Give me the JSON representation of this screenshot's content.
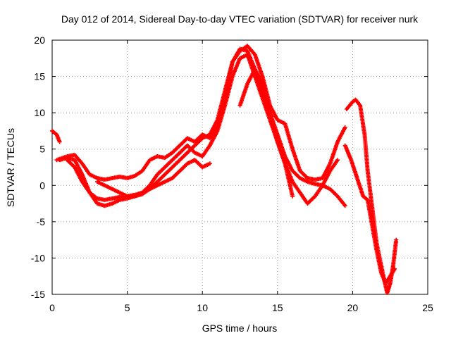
{
  "chart_data": {
    "type": "scatter",
    "title": "Day 012 of 2014, Sidereal Day-to-day VTEC variation (SDTVAR) for receiver nurk",
    "xlabel": "GPS time / hours",
    "ylabel": "SDTVAR / TECUs",
    "xlim": [
      0,
      25
    ],
    "ylim": [
      -15,
      20
    ],
    "xticks": [
      "0",
      "5",
      "10",
      "15",
      "20",
      "25"
    ],
    "yticks": [
      "-15",
      "-10",
      "-5",
      "0",
      "5",
      "10",
      "15",
      "20"
    ],
    "grid": true,
    "marker": "+",
    "color": "#ff0000",
    "series": [
      {
        "name": "trace-1",
        "x": [
          0.0,
          0.3,
          0.5
        ],
        "y": [
          7.5,
          7.0,
          6.0
        ]
      },
      {
        "name": "trace-2",
        "x": [
          0.3,
          1.0,
          1.5,
          2.0,
          2.5,
          3.0,
          3.5,
          4.0,
          4.5,
          5.0,
          5.5,
          6.0,
          6.5,
          7.0,
          7.5,
          8.0,
          8.5,
          9.0,
          9.5,
          10.0,
          10.5,
          11.0,
          11.5,
          12.0,
          12.5,
          13.0,
          13.5,
          14.0,
          14.5,
          15.0,
          15.5,
          16.0,
          16.5,
          17.0,
          17.5,
          18.0,
          18.5,
          19.0,
          19.5
        ],
        "y": [
          3.5,
          4.0,
          4.2,
          3.0,
          1.5,
          1.0,
          0.8,
          1.0,
          1.2,
          1.0,
          1.3,
          2.0,
          3.5,
          4.0,
          3.8,
          4.5,
          5.5,
          6.5,
          6.0,
          7.0,
          6.5,
          8.0,
          12.0,
          17.0,
          18.5,
          19.2,
          18.0,
          15.0,
          11.0,
          9.0,
          8.5,
          5.0,
          2.0,
          1.0,
          0.8,
          1.0,
          3.0,
          6.0,
          8.0
        ]
      },
      {
        "name": "trace-3",
        "x": [
          1.0,
          1.5,
          2.0,
          2.5,
          3.0,
          3.5,
          4.0,
          4.5,
          5.0,
          5.5,
          6.0,
          6.5,
          7.0,
          7.5,
          8.0,
          8.5,
          9.0,
          9.5,
          10.0,
          10.5,
          11.0,
          11.5,
          12.0,
          12.5,
          13.0,
          13.5,
          14.0,
          14.5,
          15.0,
          15.5,
          16.0,
          16.5,
          17.0,
          17.5,
          18.0,
          18.5,
          19.0,
          19.5
        ],
        "y": [
          3.5,
          2.5,
          0.5,
          -1.0,
          -1.8,
          -2.0,
          -1.8,
          -1.6,
          -1.5,
          -1.3,
          -1.0,
          -0.5,
          0.5,
          1.5,
          2.5,
          3.5,
          4.5,
          5.5,
          6.5,
          7.0,
          9.0,
          13.0,
          17.0,
          18.8,
          18.5,
          16.0,
          13.0,
          10.0,
          7.0,
          4.0,
          2.0,
          1.0,
          0.5,
          0.2,
          0.0,
          -0.5,
          -1.5,
          -2.8
        ]
      },
      {
        "name": "trace-4",
        "x": [
          0.5,
          1.0,
          1.5,
          2.0,
          2.5,
          3.0,
          3.5,
          4.0,
          4.5,
          5.0,
          5.5,
          6.0,
          6.5,
          7.0,
          7.5,
          8.0,
          8.5,
          9.0,
          9.5,
          10.0,
          10.5,
          11.0,
          11.5,
          12.0,
          12.5,
          13.0,
          13.5,
          14.0,
          14.5,
          15.0,
          15.5,
          16.0,
          16.5,
          17.0,
          17.5,
          18.0,
          18.5,
          19.0
        ],
        "y": [
          3.5,
          3.8,
          3.5,
          1.5,
          -1.0,
          -2.5,
          -2.8,
          -2.5,
          -2.0,
          -1.8,
          -1.5,
          -1.0,
          0.0,
          1.5,
          2.5,
          3.5,
          4.5,
          5.5,
          4.5,
          4.0,
          5.5,
          7.5,
          11.0,
          15.0,
          17.5,
          18.0,
          15.0,
          12.0,
          9.0,
          6.0,
          3.0,
          0.5,
          -1.0,
          -2.5,
          -1.5,
          0.0,
          2.0,
          3.5
        ]
      },
      {
        "name": "trace-5",
        "x": [
          3.0,
          3.5,
          4.0,
          4.5,
          5.0,
          5.5,
          6.0,
          6.5,
          7.0,
          7.5,
          8.0,
          8.5,
          9.0,
          9.5,
          10.0,
          10.5
        ],
        "y": [
          0.5,
          0.0,
          -0.5,
          -1.0,
          -1.5,
          -1.5,
          -1.2,
          -0.5,
          0.0,
          0.5,
          1.0,
          2.0,
          3.0,
          3.5,
          2.5,
          3.0
        ]
      },
      {
        "name": "trace-6",
        "x": [
          12.5,
          13.0,
          13.5,
          14.0,
          14.5,
          15.0,
          15.5,
          16.0
        ],
        "y": [
          11.0,
          14.0,
          16.0,
          14.0,
          10.0,
          6.0,
          3.0,
          -1.5
        ]
      },
      {
        "name": "trace-7",
        "x": [
          19.6,
          20.0,
          20.2,
          20.5,
          20.8,
          21.0,
          21.3,
          21.6,
          21.9,
          22.1,
          22.3,
          22.5,
          22.7,
          22.9
        ],
        "y": [
          10.5,
          11.5,
          11.8,
          11.0,
          7.0,
          2.0,
          -3.0,
          -8.0,
          -11.0,
          -13.0,
          -14.8,
          -13.5,
          -11.0,
          -7.5
        ]
      },
      {
        "name": "trace-8",
        "x": [
          19.5,
          19.9,
          20.3,
          20.7,
          21.0,
          21.3,
          21.6,
          21.9,
          22.2,
          22.5,
          22.8
        ],
        "y": [
          5.5,
          3.5,
          1.0,
          -1.5,
          -2.0,
          -5.5,
          -9.0,
          -12.0,
          -13.5,
          -12.5,
          -11.5
        ]
      }
    ]
  }
}
